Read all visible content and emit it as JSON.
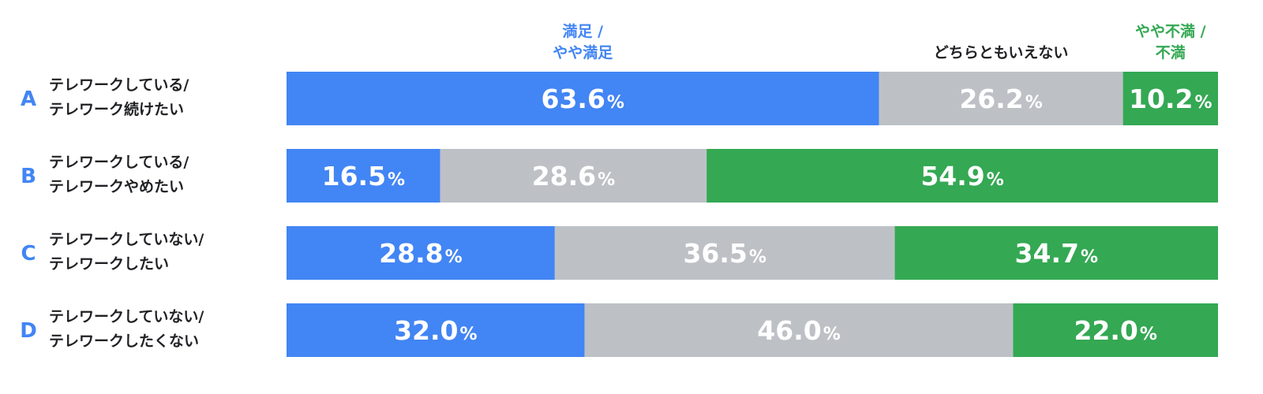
{
  "chart_data": {
    "type": "bar",
    "orientation": "horizontal",
    "stacked": true,
    "xlim": [
      0,
      100
    ],
    "unit_suffix": "%",
    "colors": {
      "satisfied": "#4285f4",
      "neutral": "#bdc1c6",
      "dissatisfied": "#34a853",
      "letters": "#4285f4",
      "label_text": "#202124"
    },
    "legend": [
      {
        "key": "satisfied",
        "lines": [
          "満足 /",
          "やや満足"
        ]
      },
      {
        "key": "neutral",
        "lines": [
          "どちらともいえない"
        ]
      },
      {
        "key": "dissatisfied",
        "lines": [
          "やや不満 /",
          "不満"
        ]
      }
    ],
    "categories": [
      {
        "letter": "A",
        "label_lines": [
          "テレワークしている/",
          "テレワーク続けたい"
        ]
      },
      {
        "letter": "B",
        "label_lines": [
          "テレワークしている/",
          "テレワークやめたい"
        ]
      },
      {
        "letter": "C",
        "label_lines": [
          "テレワークしていない/",
          "テレワークしたい"
        ]
      },
      {
        "letter": "D",
        "label_lines": [
          "テレワークしていない/",
          "テレワークしたくない"
        ]
      }
    ],
    "series": [
      {
        "key": "satisfied",
        "values": [
          63.6,
          16.5,
          28.8,
          32.0
        ]
      },
      {
        "key": "neutral",
        "values": [
          26.2,
          28.6,
          36.5,
          46.0
        ]
      },
      {
        "key": "dissatisfied",
        "values": [
          10.2,
          54.9,
          34.7,
          22.0
        ]
      }
    ]
  }
}
